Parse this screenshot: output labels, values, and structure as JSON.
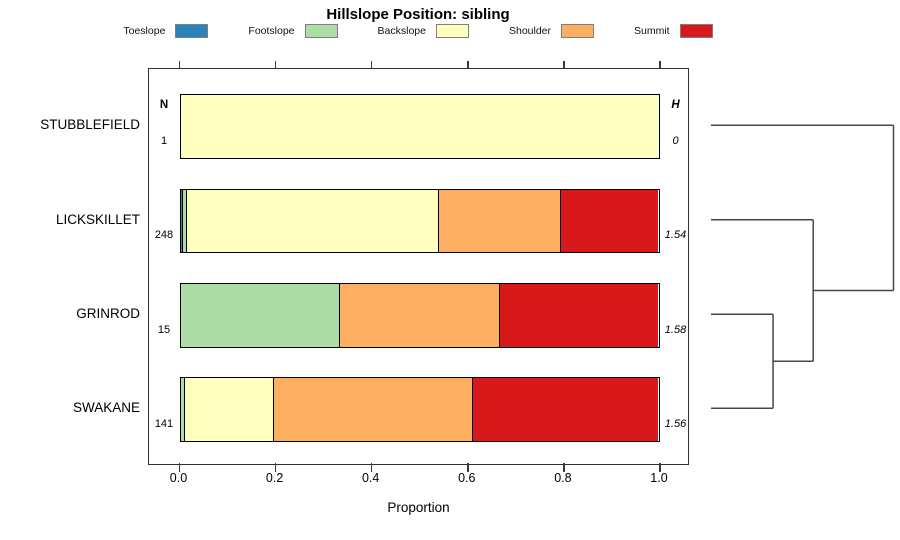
{
  "title": "Hillslope Position: sibling",
  "legend": {
    "items": [
      {
        "label": "Toeslope",
        "color": "#2B83BA"
      },
      {
        "label": "Footslope",
        "color": "#ABDDA4"
      },
      {
        "label": "Backslope",
        "color": "#FFFFBF"
      },
      {
        "label": "Shoulder",
        "color": "#FDAE61"
      },
      {
        "label": "Summit",
        "color": "#D7191C"
      }
    ]
  },
  "columns": {
    "n_header": "N",
    "h_header": "H"
  },
  "axis": {
    "label": "Proportion",
    "ticks": [
      {
        "value": 0.0,
        "label": "0.0"
      },
      {
        "value": 0.2,
        "label": "0.2"
      },
      {
        "value": 0.4,
        "label": "0.4"
      },
      {
        "value": 0.6,
        "label": "0.6"
      },
      {
        "value": 0.8,
        "label": "0.8"
      },
      {
        "value": 1.0,
        "label": "1.0"
      }
    ]
  },
  "chart_data": {
    "type": "bar",
    "variant": "horizontal-stacked-proportion",
    "title": "Hillslope Position: sibling",
    "xlabel": "Proportion",
    "xlim": [
      0,
      1
    ],
    "legend_position": "top",
    "grid": false,
    "classes": [
      "Toeslope",
      "Footslope",
      "Backslope",
      "Shoulder",
      "Summit"
    ],
    "colors": {
      "Toeslope": "#2B83BA",
      "Footslope": "#ABDDA4",
      "Backslope": "#FFFFBF",
      "Shoulder": "#FDAE61",
      "Summit": "#D7191C"
    },
    "categories": [
      "STUBBLEFIELD",
      "LICKSKILLET",
      "GRINROD",
      "SWAKANE"
    ],
    "rows": [
      {
        "label": "STUBBLEFIELD",
        "n": "1",
        "h": "0",
        "segments": [
          {
            "name": "Backslope",
            "value": 1.0
          }
        ]
      },
      {
        "label": "LICKSKILLET",
        "n": "248",
        "h": "1.54",
        "segments": [
          {
            "name": "Toeslope",
            "value": 0.004
          },
          {
            "name": "Footslope",
            "value": 0.008
          },
          {
            "name": "Backslope",
            "value": 0.527
          },
          {
            "name": "Shoulder",
            "value": 0.256
          },
          {
            "name": "Summit",
            "value": 0.205
          }
        ]
      },
      {
        "label": "GRINROD",
        "n": "15",
        "h": "1.58",
        "segments": [
          {
            "name": "Footslope",
            "value": 0.333
          },
          {
            "name": "Shoulder",
            "value": 0.334
          },
          {
            "name": "Summit",
            "value": 0.333
          }
        ]
      },
      {
        "label": "SWAKANE",
        "n": "141",
        "h": "1.56",
        "segments": [
          {
            "name": "Footslope",
            "value": 0.007
          },
          {
            "name": "Backslope",
            "value": 0.187
          },
          {
            "name": "Shoulder",
            "value": 0.417
          },
          {
            "name": "Summit",
            "value": 0.389
          }
        ]
      }
    ],
    "dendrogram": {
      "tree": {
        "height": 1.0,
        "children": [
          {
            "leaf": "STUBBLEFIELD"
          },
          {
            "height": 0.56,
            "children": [
              {
                "leaf": "LICKSKILLET"
              },
              {
                "height": 0.34,
                "children": [
                  {
                    "leaf": "GRINROD"
                  },
                  {
                    "leaf": "SWAKANE"
                  }
                ]
              }
            ]
          }
        ]
      }
    }
  }
}
